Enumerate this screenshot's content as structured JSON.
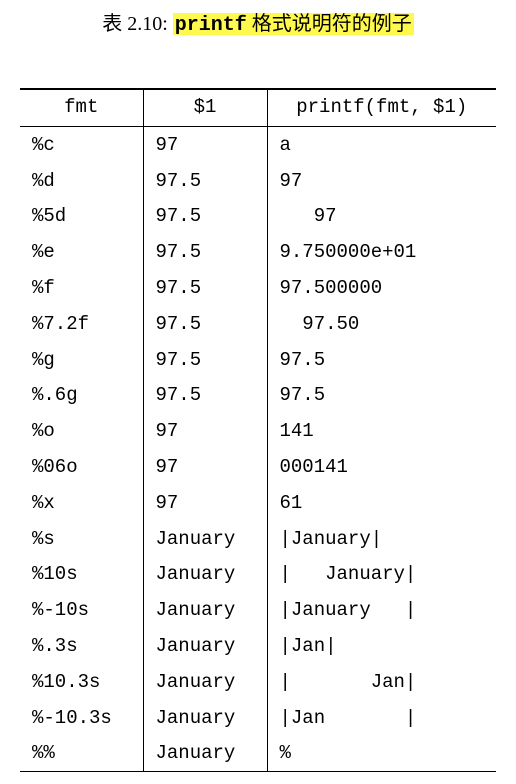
{
  "caption": {
    "prefix": "表 2.10: ",
    "code": "printf",
    "suffix": " 格式说明符的例子"
  },
  "table": {
    "headers": [
      "fmt",
      "$1",
      "printf(fmt, $1)"
    ],
    "rows": [
      [
        "%c",
        "97",
        "a"
      ],
      [
        "%d",
        "97.5",
        "97"
      ],
      [
        "%5d",
        "97.5",
        "   97"
      ],
      [
        "%e",
        "97.5",
        "9.750000e+01"
      ],
      [
        "%f",
        "97.5",
        "97.500000"
      ],
      [
        "%7.2f",
        "97.5",
        "  97.50"
      ],
      [
        "%g",
        "97.5",
        "97.5"
      ],
      [
        "%.6g",
        "97.5",
        "97.5"
      ],
      [
        "%o",
        "97",
        "141"
      ],
      [
        "%06o",
        "97",
        "000141"
      ],
      [
        "%x",
        "97",
        "61"
      ],
      [
        "%s",
        "January",
        "|January|"
      ],
      [
        "%10s",
        "January",
        "|   January|"
      ],
      [
        "%-10s",
        "January",
        "|January   |"
      ],
      [
        "%.3s",
        "January",
        "|Jan|"
      ],
      [
        "%10.3s",
        "January",
        "|       Jan|"
      ],
      [
        "%-10.3s",
        "January",
        "|Jan       |"
      ],
      [
        "%%",
        "January",
        "%"
      ]
    ]
  }
}
